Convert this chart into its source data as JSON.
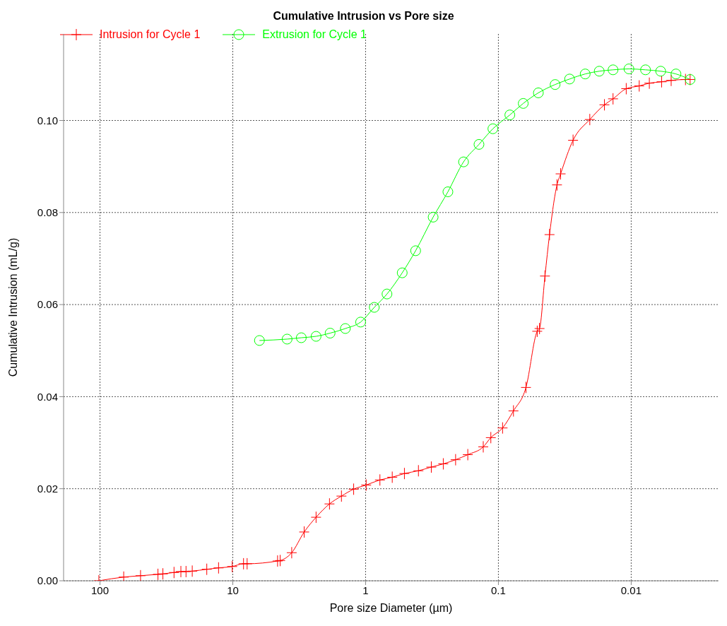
{
  "chart_data": {
    "type": "line",
    "title": "Cumulative Intrusion vs Pore size",
    "xlabel": "Pore size Diameter (µm)",
    "ylabel": "Cumulative Intrusion (mL/g)",
    "log": "x",
    "grid": true,
    "legend": "top left",
    "line_style": "solid",
    "xlim": [
      188,
      0.0022
    ],
    "xticks": [
      100,
      10,
      1,
      0.1,
      0.01
    ],
    "ylim": [
      0,
      0.1188
    ],
    "yticks": [
      {
        "value": 0,
        "label": "0.00"
      },
      {
        "value": 0.02,
        "label": "0.02"
      },
      {
        "value": 0.04,
        "label": "0.04"
      },
      {
        "value": 0.06,
        "label": "0.06"
      },
      {
        "value": 0.08,
        "label": "0.08"
      },
      {
        "value": 0.1,
        "label": "0.10"
      }
    ],
    "series": [
      {
        "name": "Intrusion for Cycle 1",
        "color": "#ff0000",
        "marker": "cross",
        "x": [
          102,
          66.3,
          49.5,
          36.6,
          33.6,
          27.7,
          24.6,
          22.5,
          20.2,
          15.7,
          12.8,
          10.1,
          8.3,
          7.8,
          4.6,
          4.4,
          3.6,
          2.9,
          2.36,
          1.87,
          1.52,
          1.23,
          0.99,
          0.78,
          0.63,
          0.51,
          0.4,
          0.32,
          0.26,
          0.21,
          0.17,
          0.13,
          0.114,
          0.093,
          0.077,
          0.062,
          0.051,
          0.049,
          0.0446,
          0.0412,
          0.0362,
          0.034,
          0.0274,
          0.0205,
          0.0159,
          0.0137,
          0.0109,
          0.0087,
          0.0073,
          0.0059,
          0.005,
          0.0039,
          0.0036
        ],
        "values": [
          0,
          0.0008,
          0.0011,
          0.0014,
          0.0015,
          0.0018,
          0.002,
          0.002,
          0.0021,
          0.0025,
          0.0028,
          0.0031,
          0.0037,
          0.0037,
          0.0043,
          0.0044,
          0.0061,
          0.0106,
          0.0138,
          0.0167,
          0.0184,
          0.0199,
          0.0208,
          0.0219,
          0.0225,
          0.0233,
          0.0239,
          0.0247,
          0.0254,
          0.0263,
          0.0274,
          0.0291,
          0.0311,
          0.0332,
          0.0369,
          0.042,
          0.0542,
          0.0548,
          0.0662,
          0.0752,
          0.086,
          0.0884,
          0.0957,
          0.1002,
          0.1034,
          0.1047,
          0.1069,
          0.1075,
          0.1081,
          0.1084,
          0.1087,
          0.1089,
          0.1089
        ]
      },
      {
        "name": "Extrusion for Cycle 1",
        "color": "#00ff00",
        "marker": "circle",
        "x": [
          6.3,
          3.9,
          3.05,
          2.36,
          1.85,
          1.42,
          1.09,
          0.86,
          0.69,
          0.53,
          0.42,
          0.31,
          0.24,
          0.183,
          0.14,
          0.11,
          0.082,
          0.065,
          0.05,
          0.0374,
          0.0291,
          0.0222,
          0.0174,
          0.0137,
          0.0104,
          0.0078,
          0.006,
          0.0046,
          0.0036
        ],
        "values": [
          0.0522,
          0.0525,
          0.0528,
          0.0531,
          0.0538,
          0.0548,
          0.0562,
          0.0594,
          0.0623,
          0.0669,
          0.0717,
          0.079,
          0.0845,
          0.091,
          0.0948,
          0.0982,
          0.1012,
          0.1037,
          0.106,
          0.1078,
          0.109,
          0.1101,
          0.1107,
          0.111,
          0.1112,
          0.111,
          0.1107,
          0.1101,
          0.1089
        ]
      }
    ]
  }
}
